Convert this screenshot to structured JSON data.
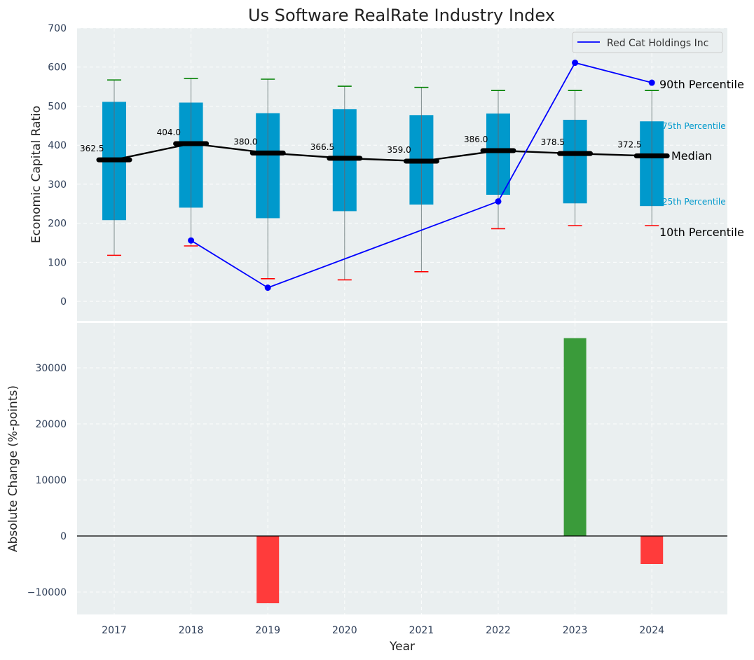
{
  "chart_data": {
    "title": "Us Software RealRate Industry Index",
    "categories": [
      "2017",
      "2018",
      "2019",
      "2020",
      "2021",
      "2022",
      "2023",
      "2024"
    ],
    "xlabel": "Year",
    "top_panel": {
      "type": "box",
      "ylabel": "Economic Capital Ratio",
      "ylim": [
        -50,
        700
      ],
      "yticks": [
        0,
        100,
        200,
        300,
        400,
        500,
        600,
        700
      ],
      "p10": [
        118,
        142,
        58,
        55,
        76,
        186,
        194,
        194
      ],
      "p25": [
        208,
        240,
        213,
        231,
        248,
        273,
        251,
        244
      ],
      "median": [
        362.5,
        404.0,
        380.0,
        366.5,
        359.0,
        386.0,
        378.5,
        372.5
      ],
      "median_labels": [
        "362.5",
        "404.0",
        "380.0",
        "366.5",
        "359.0",
        "386.0",
        "378.5",
        "372.5"
      ],
      "p75": [
        511,
        509,
        482,
        492,
        477,
        481,
        465,
        461
      ],
      "p90": [
        567,
        571,
        569,
        551,
        548,
        540,
        540,
        540
      ],
      "company_series": {
        "name": "Red Cat Holdings Inc",
        "x": [
          "2018",
          "2019",
          "2022",
          "2023",
          "2024"
        ],
        "values": [
          156,
          35,
          256,
          611,
          560
        ],
        "color": "#0000ff"
      },
      "annotations": {
        "p90": "90th Percentile",
        "p75": "75th Percentile",
        "median": "Median",
        "p25": "25th Percentile",
        "p10": "10th Percentile"
      },
      "legend_placement": "top-right",
      "box_color": "#0099cc",
      "median_color": "#000000",
      "p90_cap_color": "#008000",
      "p10_cap_color": "#ff0000"
    },
    "bottom_panel": {
      "type": "bar",
      "ylabel": "Absolute Change (%-points)",
      "ylim": [
        -14000,
        38000
      ],
      "yticks": [
        -10000,
        0,
        10000,
        20000,
        30000
      ],
      "ytick_labels": [
        "−10000",
        "0",
        "10000",
        "20000",
        "30000"
      ],
      "values": [
        0,
        0,
        -12000,
        0,
        0,
        0,
        35300,
        -5000
      ],
      "positive_color": "#3a9b3a",
      "negative_color": "#ff3b3b"
    },
    "grid": true,
    "background_color": "#eaeff0"
  }
}
